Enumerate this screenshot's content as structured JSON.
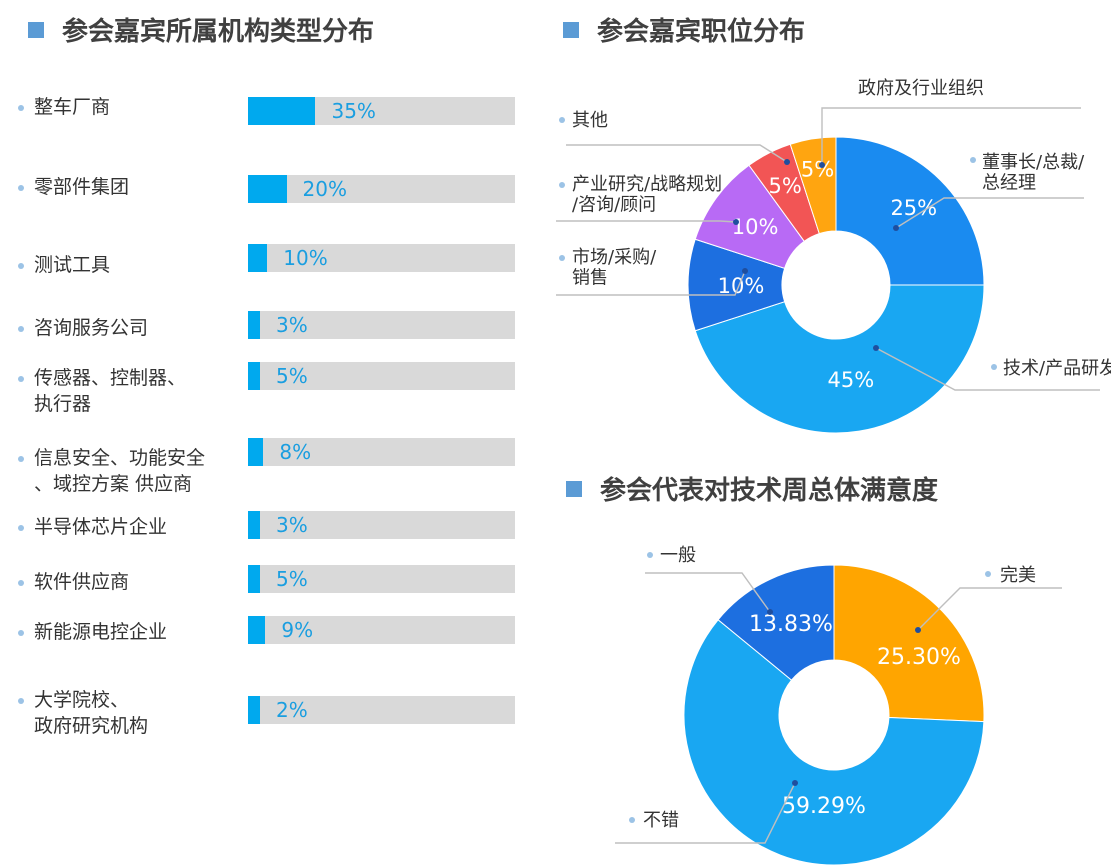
{
  "colors": {
    "bar_fill": "#00a9ee",
    "bar_track": "#d9d9d9",
    "title_marker": "#5b9bd5",
    "bullet": "#9cc3e6"
  },
  "titles": {
    "org_type": "参会嘉宾所属机构类型分布",
    "position": "参会嘉宾职位分布",
    "satisfaction": "参会代表对技术周总体满意度"
  },
  "chart_data": [
    {
      "type": "bar",
      "orientation": "horizontal",
      "title": "参会嘉宾所属机构类型分布",
      "categories": [
        "整车厂商",
        "零部件集团",
        "测试工具",
        "咨询服务公司",
        "传感器、控制器、\n执行器",
        "信息安全、功能安全\n、域控方案 供应商",
        "半导体芯片企业",
        "软件供应商",
        "新能源电控企业",
        "大学院校、\n政府研究机构"
      ],
      "values": [
        35,
        20,
        10,
        3,
        5,
        8,
        3,
        5,
        9,
        2
      ],
      "labels": [
        "35%",
        "20%",
        "10%",
        "3%",
        "5%",
        "8%",
        "3%",
        "5%",
        "9%",
        "2%"
      ],
      "xlim": [
        0,
        100
      ]
    },
    {
      "type": "pie",
      "donut": true,
      "title": "参会嘉宾职位分布",
      "categories": [
        "董事长/总裁/\n总经理",
        "技术/产品研发",
        "市场/采购/\n销售",
        "产业研究/战略规划\n/咨询/顾问",
        "其他",
        "政府及行业组织"
      ],
      "values": [
        25,
        45,
        10,
        10,
        5,
        5
      ],
      "labels": [
        "25%",
        "45%",
        "10%",
        "10%",
        "5%",
        "5%"
      ],
      "colors": [
        "#1a8bf0",
        "#19a7f2",
        "#1d6fe0",
        "#b86af5",
        "#f25555",
        "#ffa510"
      ]
    },
    {
      "type": "pie",
      "donut": true,
      "title": "参会代表对技术周总体满意度",
      "categories": [
        "完美",
        "不错",
        "一般"
      ],
      "values": [
        25.3,
        59.29,
        13.83
      ],
      "labels": [
        "25.30%",
        "59.29%",
        "13.83%"
      ],
      "colors": [
        "#ffa500",
        "#19a7f2",
        "#1d6fe0"
      ]
    }
  ]
}
